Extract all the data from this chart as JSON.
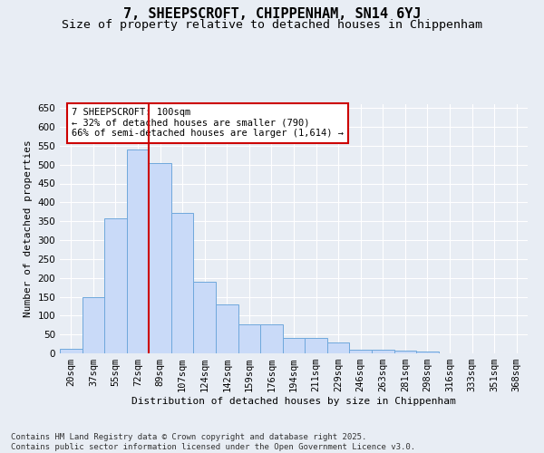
{
  "title_line1": "7, SHEEPSCROFT, CHIPPENHAM, SN14 6YJ",
  "title_line2": "Size of property relative to detached houses in Chippenham",
  "xlabel": "Distribution of detached houses by size in Chippenham",
  "ylabel": "Number of detached properties",
  "categories": [
    "20sqm",
    "37sqm",
    "55sqm",
    "72sqm",
    "89sqm",
    "107sqm",
    "124sqm",
    "142sqm",
    "159sqm",
    "176sqm",
    "194sqm",
    "211sqm",
    "229sqm",
    "246sqm",
    "263sqm",
    "281sqm",
    "298sqm",
    "316sqm",
    "333sqm",
    "351sqm",
    "368sqm"
  ],
  "values": [
    13,
    150,
    358,
    540,
    505,
    373,
    190,
    130,
    78,
    78,
    40,
    40,
    28,
    10,
    10,
    7,
    5,
    0,
    0,
    0,
    0
  ],
  "bar_color": "#c9daf8",
  "bar_edgecolor": "#6fa8dc",
  "vline_color": "#cc0000",
  "vline_x_index": 4,
  "annotation_text": "7 SHEEPSCROFT: 100sqm\n← 32% of detached houses are smaller (790)\n66% of semi-detached houses are larger (1,614) →",
  "annotation_box_facecolor": "#ffffff",
  "annotation_box_edgecolor": "#cc0000",
  "ylim": [
    0,
    660
  ],
  "yticks": [
    0,
    50,
    100,
    150,
    200,
    250,
    300,
    350,
    400,
    450,
    500,
    550,
    600,
    650
  ],
  "background_color": "#e8edf4",
  "grid_color": "#ffffff",
  "footer_text": "Contains HM Land Registry data © Crown copyright and database right 2025.\nContains public sector information licensed under the Open Government Licence v3.0.",
  "title_fontsize": 11,
  "subtitle_fontsize": 9.5,
  "axis_label_fontsize": 8,
  "tick_fontsize": 7.5,
  "annotation_fontsize": 7.5,
  "footer_fontsize": 6.5
}
